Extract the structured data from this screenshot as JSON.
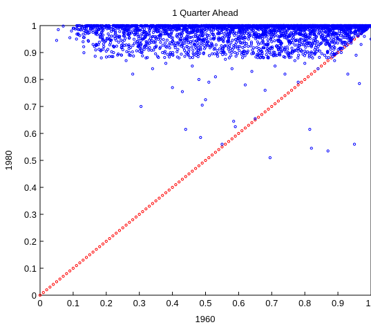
{
  "chart_data": {
    "type": "scatter",
    "title": "1 Quarter Ahead",
    "xlabel": "1960",
    "ylabel": "1980",
    "xlim": [
      0,
      1
    ],
    "ylim": [
      0,
      1
    ],
    "x_ticks": [
      "0",
      "0.1",
      "0.2",
      "0.3",
      "0.4",
      "0.5",
      "0.6",
      "0.7",
      "0.8",
      "0.9",
      "1"
    ],
    "y_ticks": [
      "0",
      "0.1",
      "0.2",
      "0.3",
      "0.4",
      "0.5",
      "0.6",
      "0.7",
      "0.8",
      "0.9",
      "1"
    ],
    "grid": false,
    "series": [
      {
        "color": "#0000ff",
        "marker": "open-circle",
        "points": [
          [
            0.05,
            0.945
          ],
          [
            0.055,
            0.985
          ],
          [
            0.07,
            0.998
          ],
          [
            0.09,
            0.955
          ],
          [
            0.095,
            0.98
          ],
          [
            0.1,
            0.99
          ],
          [
            0.11,
            0.95
          ],
          [
            0.12,
            0.985
          ],
          [
            0.13,
            0.94
          ],
          [
            0.14,
            0.99
          ],
          [
            0.15,
            0.975
          ],
          [
            0.16,
            0.93
          ],
          [
            0.17,
            0.985
          ],
          [
            0.18,
            0.995
          ],
          [
            0.19,
            0.965
          ],
          [
            0.2,
            0.905
          ],
          [
            0.21,
            0.96
          ],
          [
            0.22,
            0.885
          ],
          [
            0.23,
            0.945
          ],
          [
            0.24,
            0.995
          ],
          [
            0.25,
            0.93
          ],
          [
            0.26,
            0.87
          ],
          [
            0.27,
            0.955
          ],
          [
            0.28,
            0.82
          ],
          [
            0.29,
            0.975
          ],
          [
            0.3,
            0.905
          ],
          [
            0.305,
            0.7
          ],
          [
            0.31,
            0.95
          ],
          [
            0.32,
            0.88
          ],
          [
            0.33,
            0.965
          ],
          [
            0.34,
            0.84
          ],
          [
            0.35,
            0.92
          ],
          [
            0.36,
            0.99
          ],
          [
            0.37,
            0.9
          ],
          [
            0.38,
            0.86
          ],
          [
            0.39,
            0.96
          ],
          [
            0.4,
            0.77
          ],
          [
            0.41,
            0.935
          ],
          [
            0.42,
            0.88
          ],
          [
            0.43,
            0.755
          ],
          [
            0.44,
            0.615
          ],
          [
            0.45,
            0.91
          ],
          [
            0.46,
            0.85
          ],
          [
            0.47,
            0.96
          ],
          [
            0.48,
            0.8
          ],
          [
            0.485,
            0.585
          ],
          [
            0.49,
            0.705
          ],
          [
            0.5,
            0.92
          ],
          [
            0.5,
            0.725
          ],
          [
            0.51,
            0.79
          ],
          [
            0.52,
            0.895
          ],
          [
            0.53,
            0.81
          ],
          [
            0.54,
            0.955
          ],
          [
            0.55,
            0.56
          ],
          [
            0.56,
            0.875
          ],
          [
            0.57,
            0.92
          ],
          [
            0.58,
            0.84
          ],
          [
            0.585,
            0.645
          ],
          [
            0.59,
            0.625
          ],
          [
            0.6,
            0.975
          ],
          [
            0.61,
            0.9
          ],
          [
            0.62,
            0.78
          ],
          [
            0.63,
            0.95
          ],
          [
            0.64,
            0.83
          ],
          [
            0.65,
            0.655
          ],
          [
            0.66,
            0.905
          ],
          [
            0.67,
            0.96
          ],
          [
            0.68,
            0.76
          ],
          [
            0.69,
            0.88
          ],
          [
            0.695,
            0.51
          ],
          [
            0.7,
            0.94
          ],
          [
            0.71,
            0.85
          ],
          [
            0.72,
            0.91
          ],
          [
            0.73,
            0.965
          ],
          [
            0.74,
            0.82
          ],
          [
            0.75,
            0.9
          ],
          [
            0.76,
            0.945
          ],
          [
            0.77,
            0.87
          ],
          [
            0.78,
            0.79
          ],
          [
            0.79,
            0.93
          ],
          [
            0.8,
            0.86
          ],
          [
            0.81,
            0.965
          ],
          [
            0.815,
            0.615
          ],
          [
            0.82,
            0.545
          ],
          [
            0.83,
            0.91
          ],
          [
            0.84,
            0.84
          ],
          [
            0.85,
            0.955
          ],
          [
            0.86,
            0.89
          ],
          [
            0.87,
            0.535
          ],
          [
            0.875,
            0.93
          ],
          [
            0.88,
            0.975
          ],
          [
            0.89,
            0.87
          ],
          [
            0.9,
            0.95
          ],
          [
            0.91,
            0.9
          ],
          [
            0.92,
            0.985
          ],
          [
            0.93,
            0.82
          ],
          [
            0.94,
            0.935
          ],
          [
            0.95,
            0.56
          ],
          [
            0.955,
            0.89
          ],
          [
            0.96,
            0.975
          ],
          [
            0.965,
            0.785
          ],
          [
            0.97,
            0.93
          ],
          [
            0.98,
            0.96
          ],
          [
            0.99,
            0.99
          ],
          [
            1.0,
            0.95
          ]
        ]
      },
      {
        "color": "#ff0000",
        "marker": "open-circle",
        "line": "y = x",
        "points_from": 0,
        "points_to": 1,
        "points_count": 101
      }
    ]
  }
}
